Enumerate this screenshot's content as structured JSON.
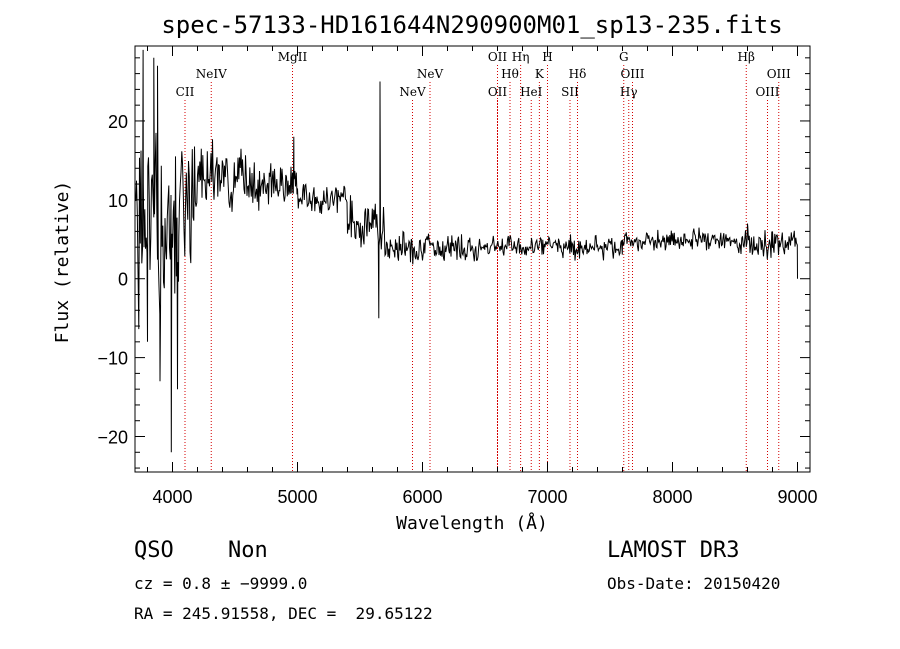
{
  "chart_data": {
    "type": "line",
    "title": "spec-57133-HD161644N290900M01_sp13-235.fits",
    "xlabel": "Wavelength (Å)",
    "ylabel": "Flux (relative)",
    "xlim": [
      3700,
      9100
    ],
    "ylim": [
      -24.5,
      29.5
    ],
    "xticks": [
      4000,
      5000,
      6000,
      7000,
      8000,
      9000
    ],
    "yticks": [
      -20,
      -10,
      0,
      10,
      20
    ],
    "series": [
      {
        "name": "flux",
        "segments": [
          {
            "x0": 3700,
            "x1": 4050,
            "base": 6,
            "noise": 13,
            "seed": 1
          },
          {
            "x0": 4050,
            "x1": 4200,
            "base": 11,
            "noise": 7,
            "seed": 2
          },
          {
            "x0": 4200,
            "x1": 4600,
            "base": 13,
            "noise": 3.5,
            "seed": 3
          },
          {
            "x0": 4600,
            "x1": 5000,
            "base": 12,
            "noise": 3,
            "seed": 4
          },
          {
            "x0": 5000,
            "x1": 5400,
            "base": 10,
            "noise": 2,
            "seed": 5
          },
          {
            "x0": 5400,
            "x1": 5700,
            "base": 7,
            "noise": 3,
            "seed": 6
          },
          {
            "x0": 5700,
            "x1": 6500,
            "base": 4,
            "noise": 1.8,
            "seed": 7
          },
          {
            "x0": 6500,
            "x1": 7600,
            "base": 4,
            "noise": 1.3,
            "seed": 8
          },
          {
            "x0": 7600,
            "x1": 8500,
            "base": 4.8,
            "noise": 1.3,
            "seed": 9
          },
          {
            "x0": 8500,
            "x1": 9000,
            "base": 4.5,
            "noise": 1.8,
            "seed": 10
          }
        ],
        "features": [
          {
            "x": 4970,
            "y": 18
          },
          {
            "x": 5660,
            "y": 25
          },
          {
            "x": 5650,
            "y": -5
          },
          {
            "x": 3765,
            "y": 29
          },
          {
            "x": 3800,
            "y": -8
          },
          {
            "x": 3850,
            "y": 28
          },
          {
            "x": 3880,
            "y": 27
          },
          {
            "x": 3900,
            "y": -13
          },
          {
            "x": 3990,
            "y": -22
          },
          {
            "x": 4040,
            "y": -14
          },
          {
            "x": 8600,
            "y": 7
          },
          {
            "x": 8800,
            "y": 6
          },
          {
            "x": 9000,
            "y": 0
          }
        ]
      }
    ],
    "emission_lines": [
      {
        "label": "CII",
        "x": 4100,
        "row": 2
      },
      {
        "label": "NeIV",
        "x": 4310,
        "row": 1
      },
      {
        "label": "MgII",
        "x": 4960,
        "row": 0
      },
      {
        "label": "NeV",
        "x": 5920,
        "row": 2
      },
      {
        "label": "NeV",
        "x": 6060,
        "row": 1
      },
      {
        "label": "OII",
        "x": 6600,
        "row": 2
      },
      {
        "label": "OII",
        "x": 6600,
        "row": 0
      },
      {
        "label": "Hθ",
        "x": 6700,
        "row": 1
      },
      {
        "label": "Hη",
        "x": 6785,
        "row": 0
      },
      {
        "label": "HeI",
        "x": 6870,
        "row": 2
      },
      {
        "label": "K",
        "x": 6935,
        "row": 1
      },
      {
        "label": "H",
        "x": 7000,
        "row": 0
      },
      {
        "label": "SII",
        "x": 7180,
        "row": 2
      },
      {
        "label": "Hδ",
        "x": 7240,
        "row": 1
      },
      {
        "label": "G",
        "x": 7610,
        "row": 0
      },
      {
        "label": "Hγ",
        "x": 7650,
        "row": 2
      },
      {
        "label": "OIII",
        "x": 7680,
        "row": 1
      },
      {
        "label": "Hβ",
        "x": 8590,
        "row": 0
      },
      {
        "label": "OIII",
        "x": 8760,
        "row": 2
      },
      {
        "label": "OIII",
        "x": 8850,
        "row": 1
      }
    ],
    "colors": {
      "line": "#000000",
      "marker": "#d40000"
    }
  },
  "info": {
    "class": "QSO",
    "subclass": "Non",
    "survey": "LAMOST DR3",
    "cz": "cz = 0.8 ± −9999.0",
    "obs_date": "Obs-Date: 20150420",
    "coords": "RA = 245.91558, DEC =  29.65122"
  }
}
